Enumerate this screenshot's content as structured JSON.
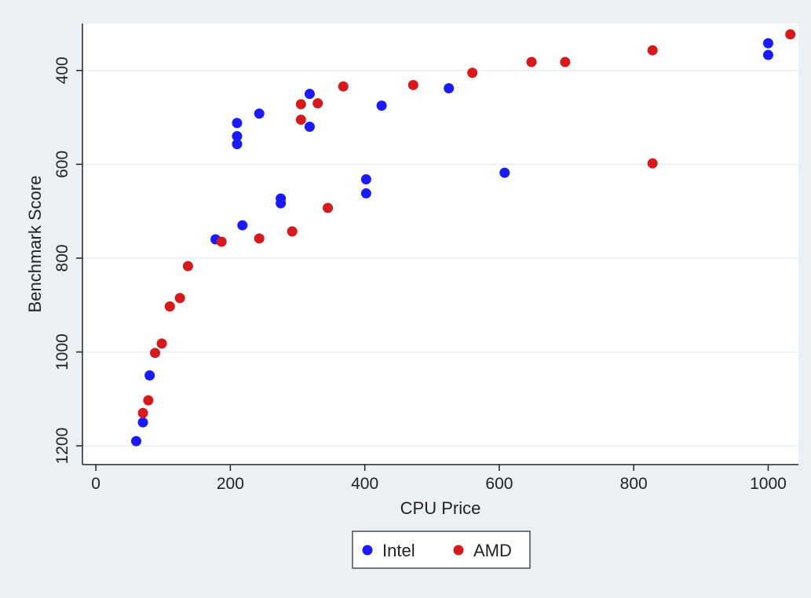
{
  "chart_data": {
    "type": "scatter",
    "xlabel": "CPU Price",
    "ylabel": "Benchmark Score",
    "xlim": [
      -20,
      1045
    ],
    "ylim": [
      1240,
      300
    ],
    "y_reversed": true,
    "grid": true,
    "legend_position": "bottom-center",
    "x_ticks": [
      0,
      200,
      400,
      600,
      800,
      1000
    ],
    "y_ticks": [
      400,
      600,
      800,
      1000,
      1200
    ],
    "series": [
      {
        "name": "Intel",
        "color": "#1a1aff",
        "points": [
          [
            60,
            1190
          ],
          [
            70,
            1150
          ],
          [
            80,
            1050
          ],
          [
            178,
            760
          ],
          [
            218,
            730
          ],
          [
            210,
            512
          ],
          [
            210,
            540
          ],
          [
            210,
            557
          ],
          [
            243,
            492
          ],
          [
            275,
            673
          ],
          [
            275,
            683
          ],
          [
            318,
            450
          ],
          [
            318,
            520
          ],
          [
            402,
            632
          ],
          [
            402,
            662
          ],
          [
            425,
            475
          ],
          [
            525,
            438
          ],
          [
            608,
            618
          ],
          [
            1000,
            342
          ],
          [
            1000,
            367
          ]
        ]
      },
      {
        "name": "AMD",
        "color": "#d7191c",
        "points": [
          [
            1033,
            323
          ],
          [
            828,
            357
          ],
          [
            698,
            382
          ],
          [
            648,
            382
          ],
          [
            560,
            405
          ],
          [
            472,
            431
          ],
          [
            368,
            434
          ],
          [
            330,
            470
          ],
          [
            305,
            472
          ],
          [
            305,
            505
          ],
          [
            828,
            598
          ],
          [
            345,
            693
          ],
          [
            292,
            743
          ],
          [
            243,
            758
          ],
          [
            187,
            765
          ],
          [
            137,
            817
          ],
          [
            125,
            885
          ],
          [
            110,
            903
          ],
          [
            98,
            982
          ],
          [
            88,
            1002
          ],
          [
            78,
            1103
          ],
          [
            70,
            1130
          ]
        ]
      }
    ]
  }
}
